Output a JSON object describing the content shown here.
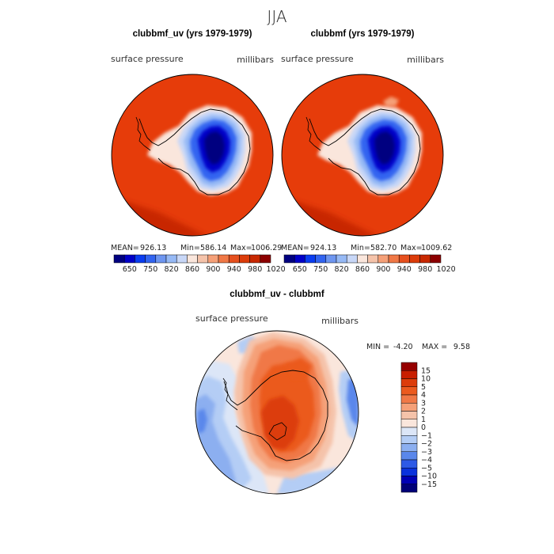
{
  "figure": {
    "title": "JJA"
  },
  "chart_data": [
    {
      "id": "clubbmf_uv",
      "type": "heatmap",
      "title": "clubbmf_uv (yrs 1979-1979)",
      "left_label": "surface pressure",
      "right_label": "millibars",
      "stats": {
        "mean_label": "MEAN=",
        "mean": "926.13",
        "min_label": "Min=",
        "min": "586.14",
        "max_label": "Max=",
        "max": "1006.29"
      },
      "levels": [
        "650",
        "750",
        "820",
        "860",
        "900",
        "940",
        "980",
        "1020"
      ],
      "colors": [
        "#000080",
        "#0000c8",
        "#0a3cf0",
        "#3264f0",
        "#6e96f0",
        "#96b9f5",
        "#c8d7f7",
        "#fae6dc",
        "#f5c3aa",
        "#f5a078",
        "#f07846",
        "#e6501e",
        "#dc3c0a",
        "#c82800",
        "#8c0000"
      ],
      "ocean_color": "#e63c0a",
      "far_color": "#c82800"
    },
    {
      "id": "clubbmf",
      "type": "heatmap",
      "title": "clubbmf (yrs 1979-1979)",
      "left_label": "surface pressure",
      "right_label": "millibars",
      "stats": {
        "mean_label": "MEAN=",
        "mean": "924.13",
        "min_label": "Min=",
        "min": "582.70",
        "max_label": "Max=",
        "max": "1009.62"
      },
      "levels": [
        "650",
        "750",
        "820",
        "860",
        "900",
        "940",
        "980",
        "1020"
      ],
      "colors": [
        "#000080",
        "#0000c8",
        "#0a3cf0",
        "#3264f0",
        "#6e96f0",
        "#96b9f5",
        "#c8d7f7",
        "#fae6dc",
        "#f5c3aa",
        "#f5a078",
        "#f07846",
        "#e6501e",
        "#dc3c0a",
        "#c82800",
        "#8c0000"
      ],
      "ocean_color": "#e63c0a",
      "far_color": "#c82800"
    },
    {
      "id": "difference",
      "type": "heatmap",
      "title": "clubbmf_uv - clubbmf",
      "left_label": "surface pressure",
      "right_label": "millibars",
      "stats": {
        "min_label": "MIN =",
        "min": "-4.20",
        "max_label": "MAX =",
        "max": "9.58"
      },
      "levels": [
        "15",
        "10",
        "5",
        "4",
        "3",
        "2",
        "1",
        "0",
        "−1",
        "−2",
        "−3",
        "−4",
        "−5",
        "−10",
        "−15"
      ],
      "colors": [
        "#960000",
        "#c81e00",
        "#dc3c0a",
        "#eb5a1e",
        "#f07846",
        "#f5a078",
        "#f5c3aa",
        "#fae6dc",
        "#dce6f7",
        "#b4cdf5",
        "#8caff0",
        "#5a87eb",
        "#2d5ae6",
        "#0a32dc",
        "#0000b4",
        "#000078"
      ]
    }
  ]
}
